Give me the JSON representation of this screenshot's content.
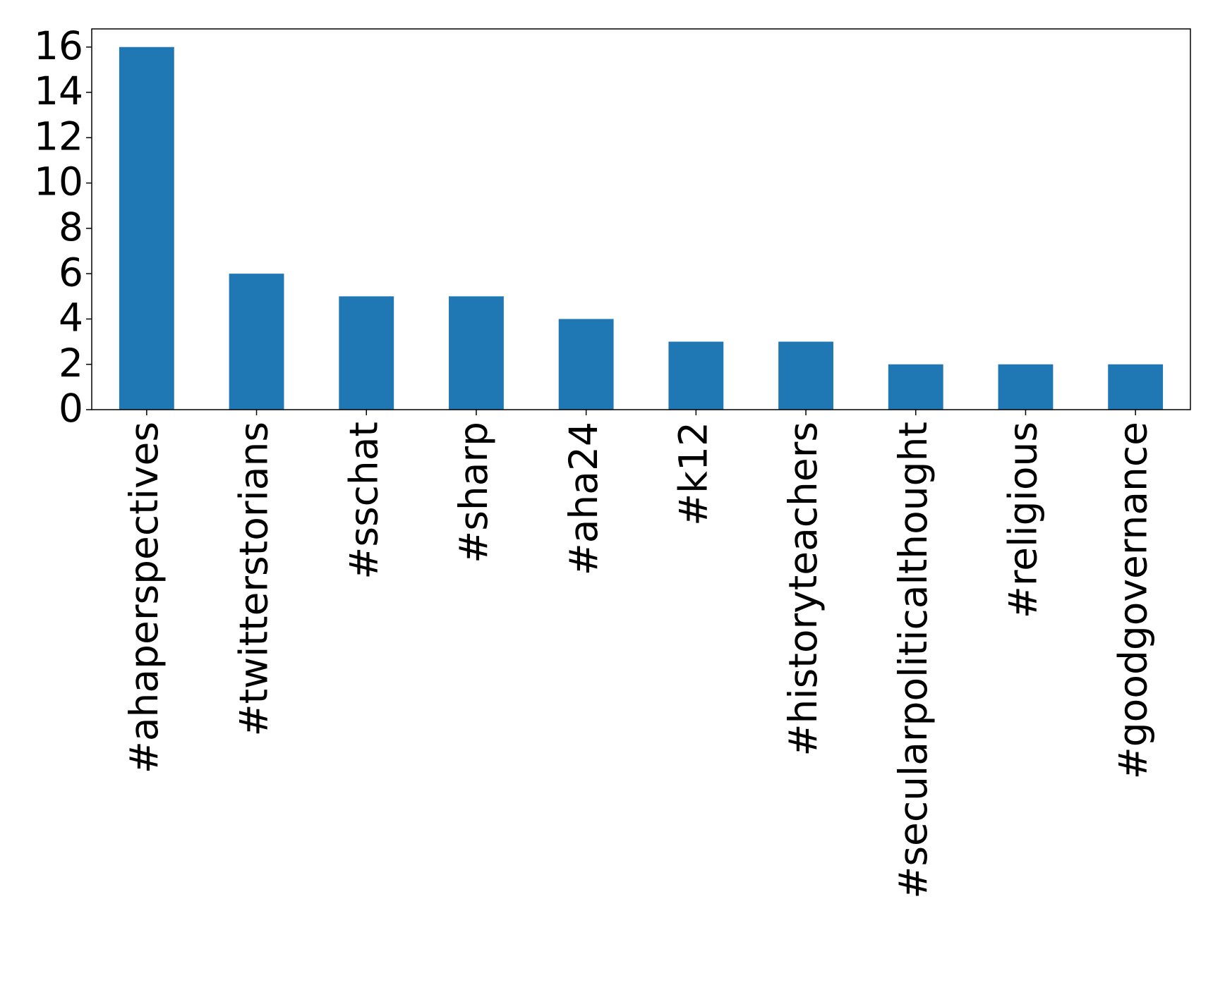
{
  "chart_data": {
    "type": "bar",
    "categories": [
      "#ahaperspectives",
      "#twitterstorians",
      "#sschat",
      "#sharp",
      "#aha24",
      "#k12",
      "#historyteachers",
      "#secularpoliticalthought",
      "#religious",
      "#goodgovernance"
    ],
    "values": [
      16,
      6,
      5,
      5,
      4,
      3,
      3,
      2,
      2,
      2
    ],
    "color": "#1f77b4",
    "ylim": [
      0,
      16.8
    ],
    "yticks": [
      0,
      2,
      4,
      6,
      8,
      10,
      12,
      14,
      16
    ],
    "grid": false
  }
}
